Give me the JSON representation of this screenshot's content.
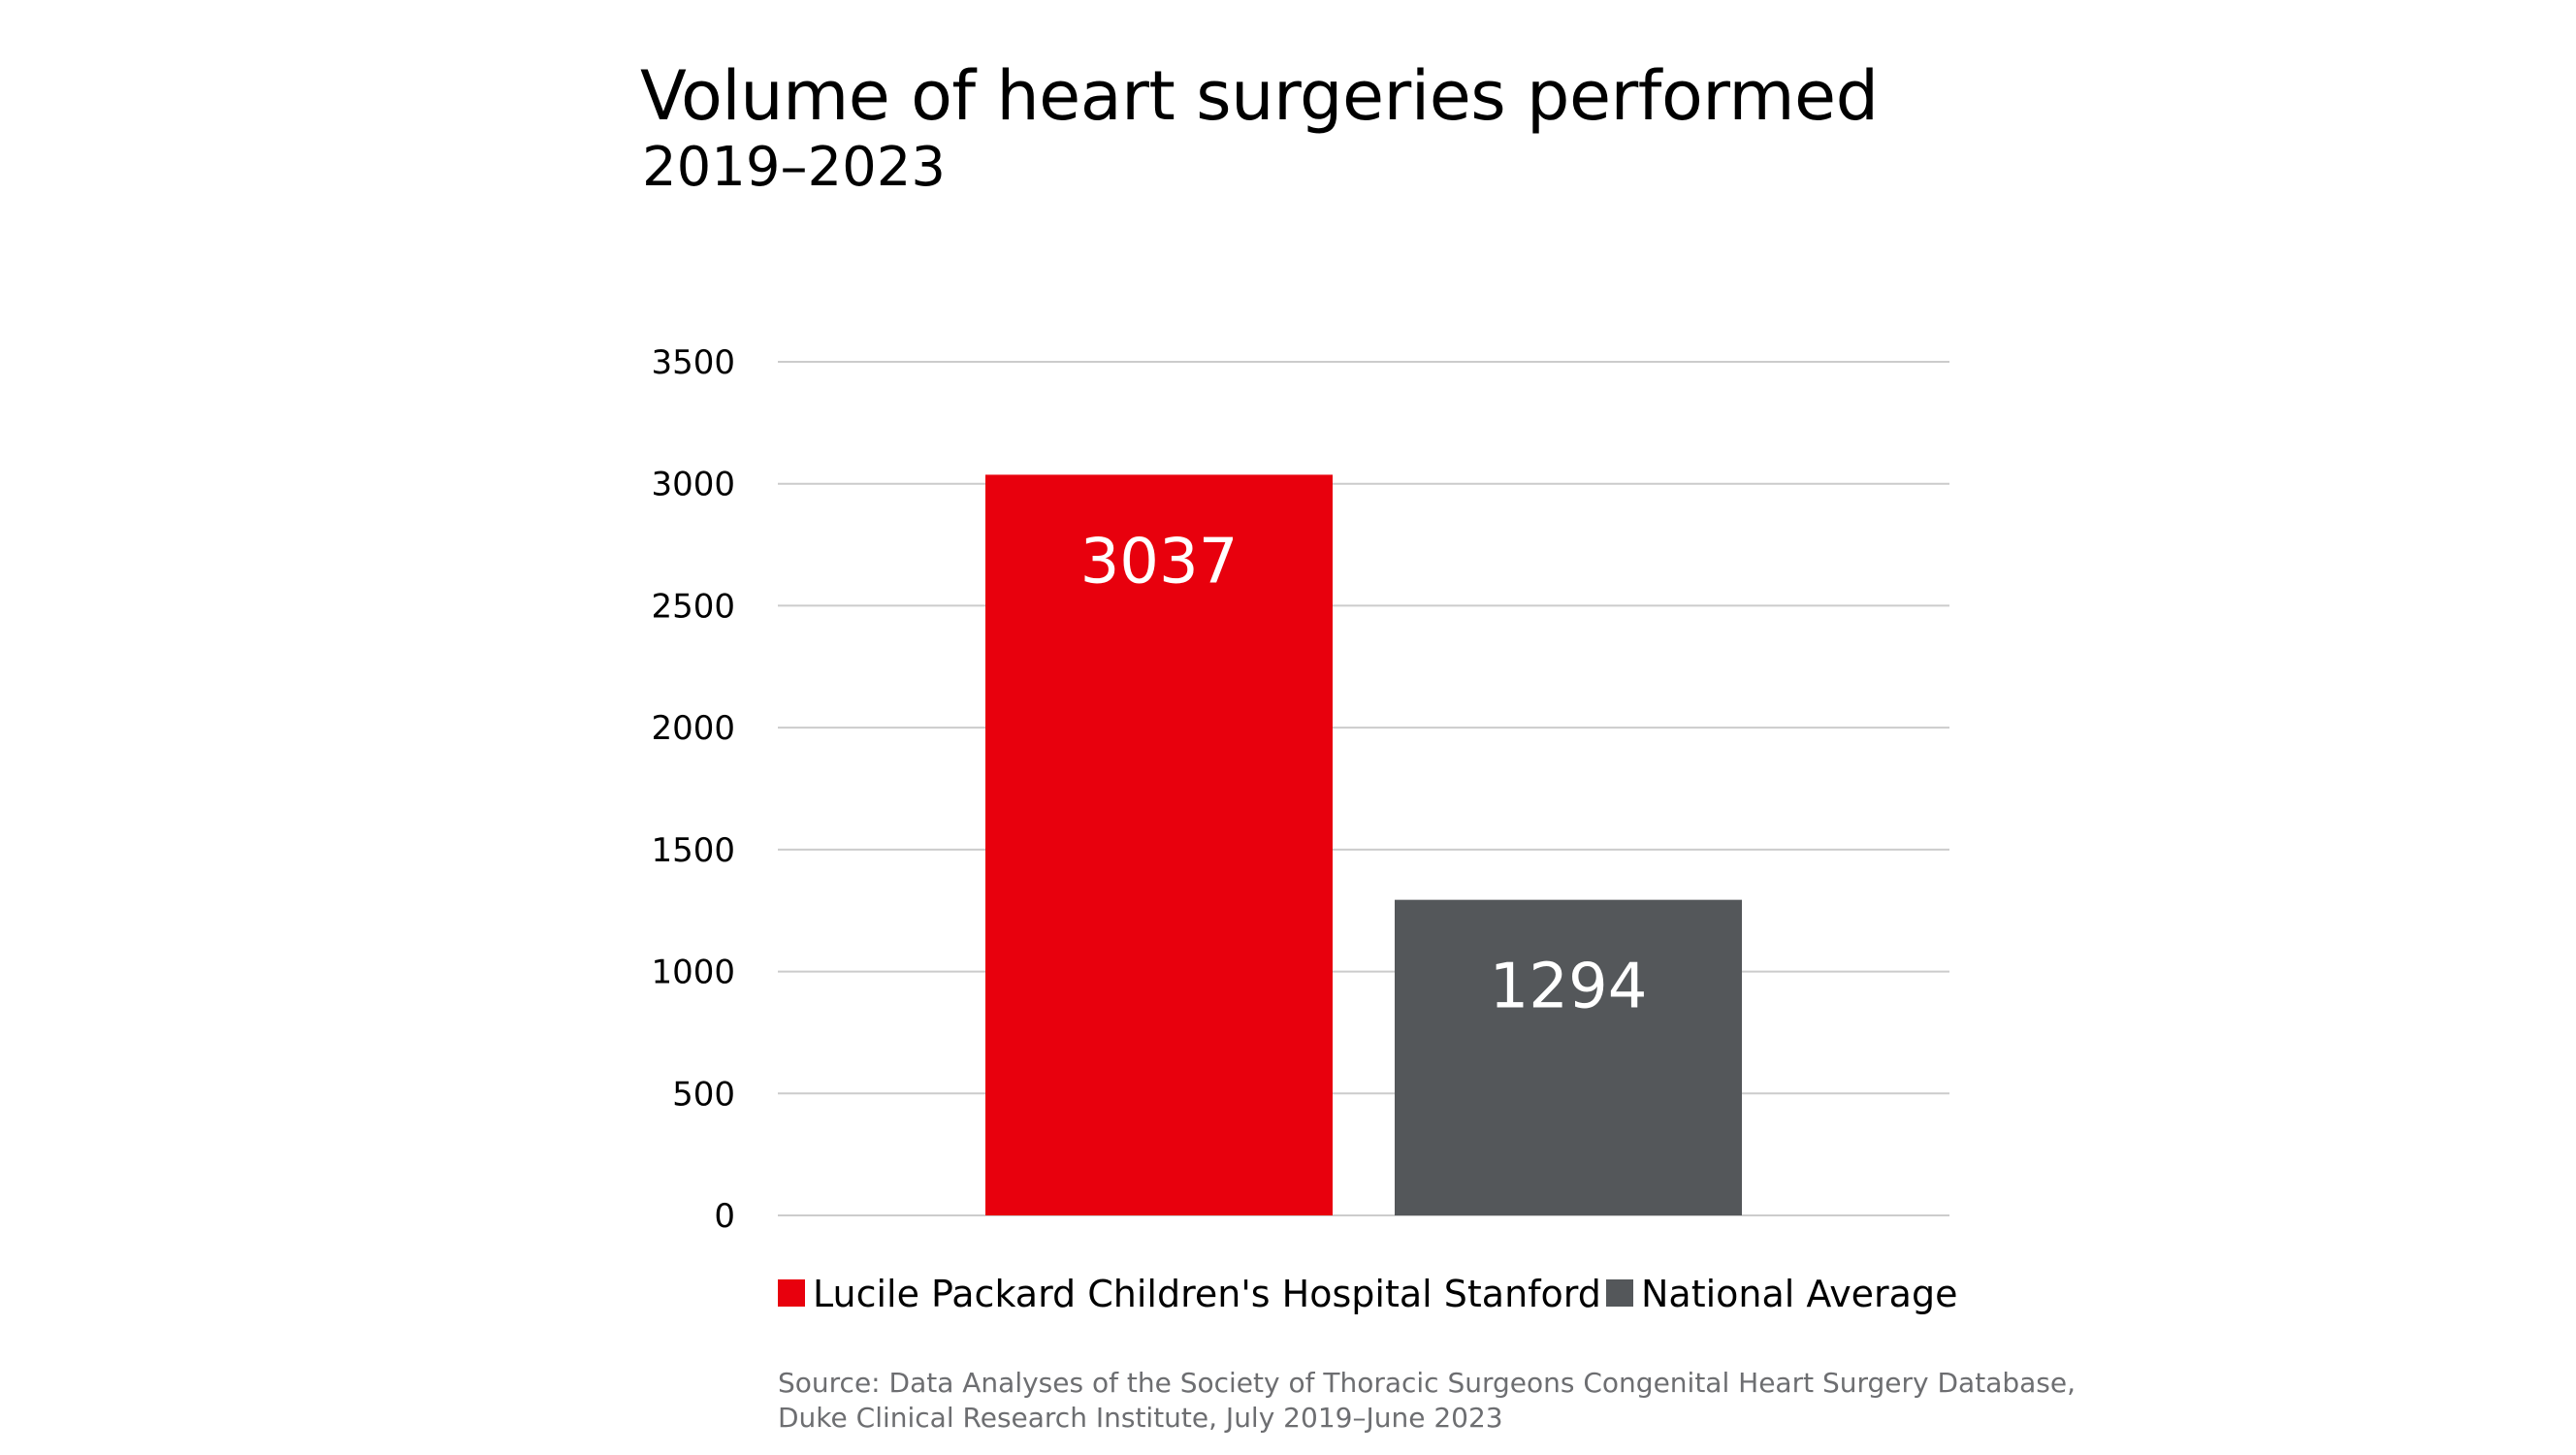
{
  "chart_data": {
    "type": "bar",
    "title": "Volume of heart surgeries performed",
    "subtitle": "2019–2023",
    "categories": [
      "Lucile Packard Children's Hospital Stanford",
      "National Average"
    ],
    "values": [
      3037,
      1294
    ],
    "data_labels": [
      "3037",
      "1294"
    ],
    "colors": [
      "#e8000d",
      "#54575a"
    ],
    "ylim": [
      0,
      3500
    ],
    "yticks": [
      0,
      500,
      1000,
      1500,
      2000,
      2500,
      3000,
      3500
    ],
    "grid": true,
    "gridline_color": "#cccccc",
    "legend": {
      "placement": "bottom",
      "entries": [
        "Lucile Packard Children's Hospital Stanford",
        "National Average"
      ]
    },
    "xlabel": "",
    "ylabel": ""
  },
  "source": {
    "line1": "Source: Data Analyses of the Society of Thoracic Surgeons Congenital Heart Surgery Database,",
    "line2": "Duke Clinical Research Institute, July 2019–June 2023"
  }
}
